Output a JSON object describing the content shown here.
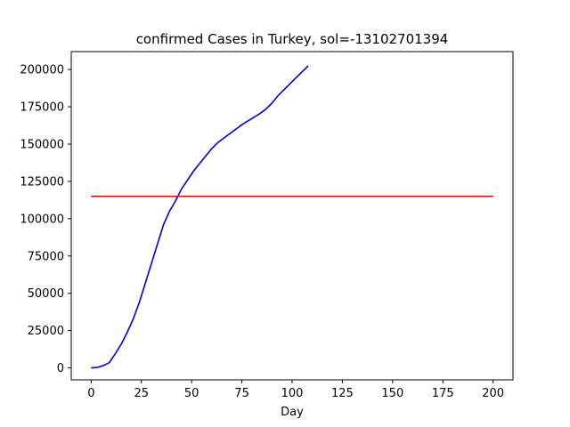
{
  "chart_data": {
    "type": "line",
    "title": "confirmed Cases in Turkey, sol=-13102701394",
    "xlabel": "Day",
    "ylabel": "",
    "xlim": [
      -9.9,
      209.9
    ],
    "ylim": [
      -8000,
      212000
    ],
    "xticks": [
      0,
      25,
      50,
      75,
      100,
      125,
      150,
      175,
      200
    ],
    "yticks": [
      0,
      25000,
      50000,
      75000,
      100000,
      125000,
      150000,
      175000,
      200000
    ],
    "grid": false,
    "series": [
      {
        "color": "#0000cc",
        "x": [
          0,
          3,
          6,
          9,
          12,
          15,
          18,
          21,
          24,
          27,
          30,
          33,
          36,
          39,
          42,
          45,
          48,
          51,
          54,
          57,
          60,
          63,
          66,
          69,
          72,
          75,
          78,
          81,
          84,
          87,
          90,
          93,
          96,
          99,
          102,
          105,
          108
        ],
        "y": [
          0,
          300,
          1500,
          3500,
          9500,
          16000,
          24000,
          33000,
          44000,
          57000,
          70000,
          83000,
          96000,
          105000,
          112000,
          120000,
          126000,
          132000,
          137000,
          142000,
          147000,
          151000,
          154000,
          157000,
          160000,
          163000,
          165500,
          168000,
          170500,
          173500,
          177500,
          182500,
          186500,
          190500,
          194500,
          198500,
          202500
        ]
      },
      {
        "color": "#dd0000",
        "x": [
          0,
          200
        ],
        "y": [
          115000,
          115000
        ]
      }
    ]
  }
}
